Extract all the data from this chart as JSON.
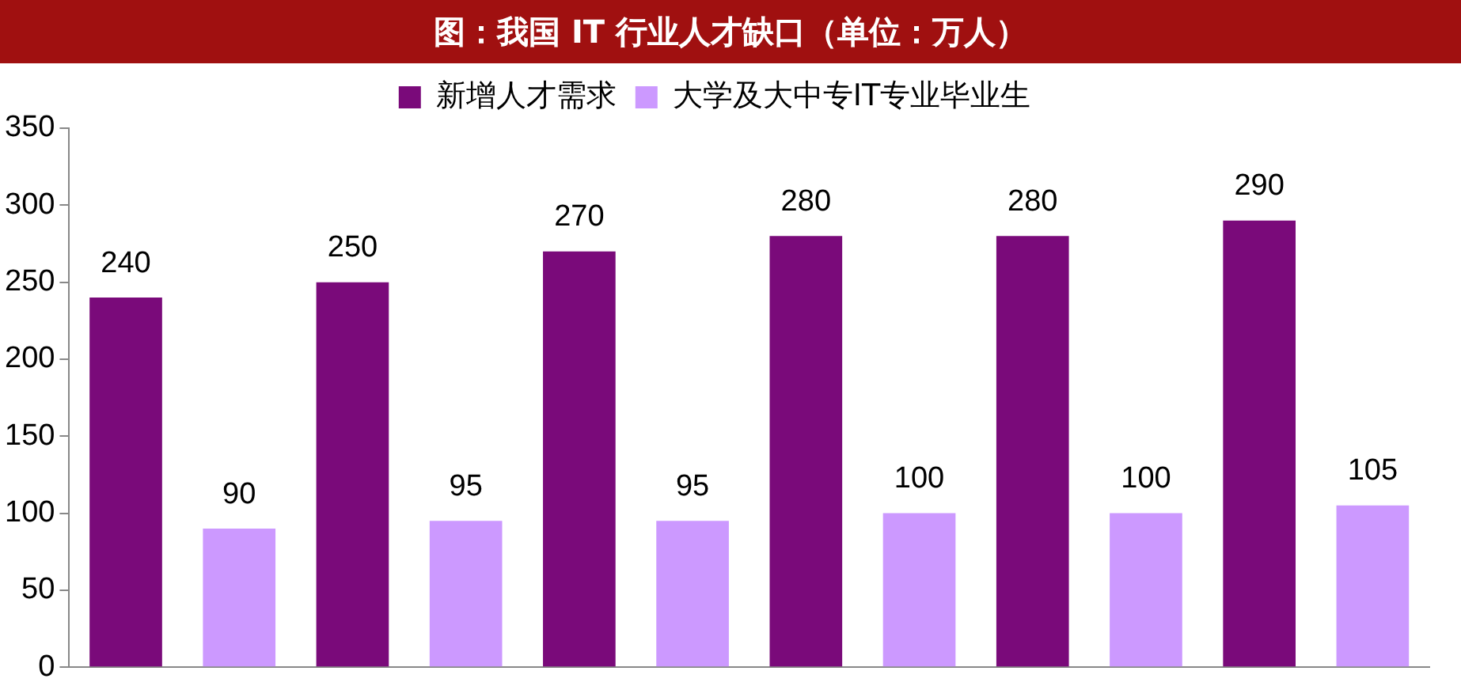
{
  "chart_data": {
    "type": "bar",
    "title": "图：我国 IT 行业人才缺口（单位：万人）",
    "categories": [
      null,
      null,
      null,
      null,
      null,
      null
    ],
    "series": [
      {
        "name": "新增人才需求",
        "color": "#7a0a7a",
        "values": [
          240,
          250,
          270,
          280,
          280,
          290
        ]
      },
      {
        "name": "大学及大中专IT专业毕业生",
        "color": "#cc99ff",
        "values": [
          90,
          95,
          95,
          100,
          100,
          105
        ]
      }
    ],
    "ylim": [
      0,
      350
    ],
    "yticks": [
      0,
      50,
      100,
      150,
      200,
      250,
      300,
      350
    ],
    "grid": false,
    "legend": "top",
    "data_labels": true
  }
}
